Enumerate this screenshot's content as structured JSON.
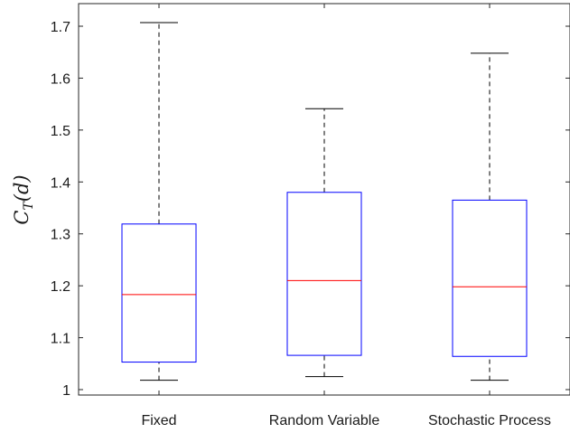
{
  "chart_data": {
    "type": "box",
    "title": "",
    "xlabel": "",
    "ylabel": {
      "main": "C",
      "sub": "T",
      "arg": "(d)"
    },
    "ylim": [
      0.98,
      1.745
    ],
    "yticks": [
      1,
      1.1,
      1.2,
      1.3,
      1.4,
      1.5,
      1.6,
      1.7
    ],
    "ytick_labels": [
      "1",
      "1.1",
      "1.2",
      "1.3",
      "1.4",
      "1.5",
      "1.6",
      "1.7"
    ],
    "grid": false,
    "categories": [
      "Fixed",
      "Random Variable",
      "Stochastic Process"
    ],
    "boxes": [
      {
        "whisker_low": 1.018,
        "q1": 1.053,
        "median": 1.183,
        "q3": 1.319,
        "whisker_high": 1.707
      },
      {
        "whisker_low": 1.025,
        "q1": 1.066,
        "median": 1.21,
        "q3": 1.38,
        "whisker_high": 1.541
      },
      {
        "whisker_low": 1.018,
        "q1": 1.064,
        "median": 1.198,
        "q3": 1.365,
        "whisker_high": 1.648
      }
    ],
    "colors": {
      "box": "#0000ff",
      "median": "#ff0000",
      "whisker": "#000000",
      "axis": "#262626"
    }
  }
}
